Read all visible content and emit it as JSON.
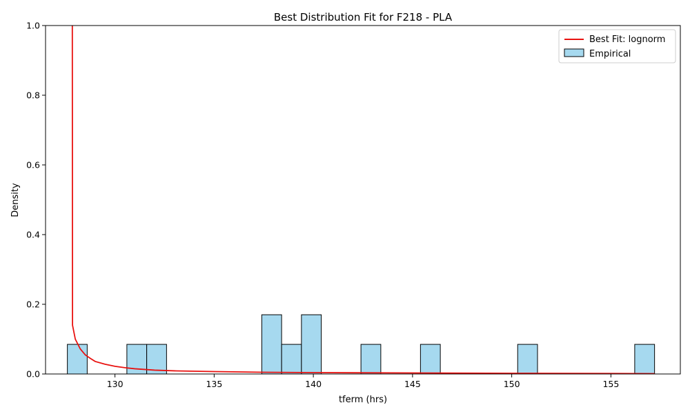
{
  "chart_data": {
    "type": "bar",
    "title": "Best Distribution Fit for F218 - PLA",
    "xlabel": "tferm (hrs)",
    "ylabel": "Density",
    "xlim": [
      126.5,
      158.5
    ],
    "ylim": [
      0,
      1.0
    ],
    "x_ticks": [
      130,
      135,
      140,
      145,
      150,
      155
    ],
    "y_ticks": [
      0.0,
      0.2,
      0.4,
      0.6,
      0.8,
      1.0
    ],
    "x_tick_labels": [
      "130",
      "135",
      "140",
      "145",
      "150",
      "155"
    ],
    "y_tick_labels": [
      "0.0",
      "0.2",
      "0.4",
      "0.6",
      "0.8",
      "1.0"
    ],
    "legend_position": "upper-right",
    "grid": false,
    "histogram": {
      "name": "Empirical",
      "color": "#a6d9ef",
      "edge_color": "#000000",
      "bins": [
        {
          "x0": 127.6,
          "x1": 128.6,
          "density": 0.085
        },
        {
          "x0": 130.6,
          "x1": 131.6,
          "density": 0.085
        },
        {
          "x0": 131.6,
          "x1": 132.6,
          "density": 0.085
        },
        {
          "x0": 137.4,
          "x1": 138.4,
          "density": 0.17
        },
        {
          "x0": 138.4,
          "x1": 139.4,
          "density": 0.085
        },
        {
          "x0": 139.4,
          "x1": 140.4,
          "density": 0.17
        },
        {
          "x0": 142.4,
          "x1": 143.4,
          "density": 0.085
        },
        {
          "x0": 145.4,
          "x1": 146.4,
          "density": 0.085
        },
        {
          "x0": 150.3,
          "x1": 151.3,
          "density": 0.085
        },
        {
          "x0": 156.2,
          "x1": 157.2,
          "density": 0.085
        }
      ]
    },
    "fit_line": {
      "name": "Best Fit: lognorm",
      "color": "#e8110f",
      "x": [
        127.85,
        127.86,
        128.0,
        128.25,
        128.5,
        128.75,
        129.0,
        129.5,
        130.0,
        130.5,
        131.0,
        132.0,
        133.0,
        135.0,
        137.5,
        140.0,
        145.0,
        150.0,
        155.0,
        157.2
      ],
      "y": [
        1.0,
        0.14,
        0.1,
        0.072,
        0.055,
        0.045,
        0.036,
        0.028,
        0.022,
        0.018,
        0.015,
        0.011,
        0.009,
        0.007,
        0.005,
        0.004,
        0.003,
        0.002,
        0.0015,
        0.001
      ]
    },
    "legend": [
      {
        "label": "Best Fit: lognorm",
        "kind": "line",
        "color": "#e8110f"
      },
      {
        "label": "Empirical",
        "kind": "patch",
        "color": "#a6d9ef"
      }
    ]
  }
}
